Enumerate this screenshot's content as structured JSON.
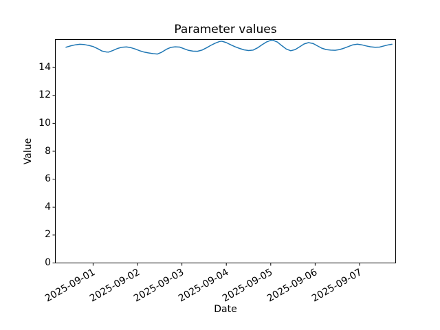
{
  "figure": {
    "background": "#ffffff"
  },
  "chart_data": {
    "type": "line",
    "title": "Parameter values",
    "xlabel": "Date",
    "ylabel": "Value",
    "grid": false,
    "legend": null,
    "x_axis": {
      "unit": "days_from_2025-09-01",
      "lim": [
        -0.85,
        6.813
      ],
      "tick_rotation_deg": 30,
      "ticks": [
        {
          "t": 0,
          "label": "2025-09-01"
        },
        {
          "t": 1,
          "label": "2025-09-02"
        },
        {
          "t": 2,
          "label": "2025-09-03"
        },
        {
          "t": 3,
          "label": "2025-09-04"
        },
        {
          "t": 4,
          "label": "2025-09-05"
        },
        {
          "t": 5,
          "label": "2025-09-06"
        },
        {
          "t": 6,
          "label": "2025-09-07"
        }
      ]
    },
    "y_axis": {
      "lim": [
        0,
        16
      ],
      "ticks": [
        0,
        2,
        4,
        6,
        8,
        10,
        12,
        14
      ]
    },
    "series": [
      {
        "name": "Parameter values",
        "color": "#1f77b4",
        "line_width": 1.5,
        "points": [
          [
            -0.61,
            15.45
          ],
          [
            -0.5,
            15.55
          ],
          [
            -0.4,
            15.62
          ],
          [
            -0.3,
            15.66
          ],
          [
            -0.2,
            15.64
          ],
          [
            -0.1,
            15.58
          ],
          [
            0.0,
            15.5
          ],
          [
            0.1,
            15.35
          ],
          [
            0.2,
            15.18
          ],
          [
            0.3,
            15.11
          ],
          [
            0.35,
            15.1
          ],
          [
            0.45,
            15.22
          ],
          [
            0.55,
            15.36
          ],
          [
            0.65,
            15.45
          ],
          [
            0.75,
            15.47
          ],
          [
            0.85,
            15.42
          ],
          [
            0.95,
            15.32
          ],
          [
            1.05,
            15.2
          ],
          [
            1.15,
            15.1
          ],
          [
            1.25,
            15.04
          ],
          [
            1.35,
            14.99
          ],
          [
            1.45,
            14.96
          ],
          [
            1.55,
            15.1
          ],
          [
            1.65,
            15.3
          ],
          [
            1.75,
            15.44
          ],
          [
            1.85,
            15.48
          ],
          [
            1.95,
            15.46
          ],
          [
            2.05,
            15.34
          ],
          [
            2.15,
            15.22
          ],
          [
            2.25,
            15.17
          ],
          [
            2.35,
            15.16
          ],
          [
            2.45,
            15.24
          ],
          [
            2.55,
            15.4
          ],
          [
            2.65,
            15.58
          ],
          [
            2.75,
            15.74
          ],
          [
            2.85,
            15.86
          ],
          [
            2.9,
            15.88
          ],
          [
            3.0,
            15.78
          ],
          [
            3.1,
            15.62
          ],
          [
            3.2,
            15.48
          ],
          [
            3.3,
            15.36
          ],
          [
            3.4,
            15.26
          ],
          [
            3.5,
            15.21
          ],
          [
            3.6,
            15.24
          ],
          [
            3.7,
            15.4
          ],
          [
            3.8,
            15.62
          ],
          [
            3.9,
            15.82
          ],
          [
            4.0,
            15.94
          ],
          [
            4.05,
            15.95
          ],
          [
            4.15,
            15.82
          ],
          [
            4.25,
            15.56
          ],
          [
            4.35,
            15.32
          ],
          [
            4.45,
            15.2
          ],
          [
            4.55,
            15.28
          ],
          [
            4.65,
            15.48
          ],
          [
            4.75,
            15.68
          ],
          [
            4.85,
            15.78
          ],
          [
            4.95,
            15.72
          ],
          [
            5.05,
            15.55
          ],
          [
            5.15,
            15.38
          ],
          [
            5.25,
            15.28
          ],
          [
            5.35,
            15.24
          ],
          [
            5.45,
            15.23
          ],
          [
            5.55,
            15.28
          ],
          [
            5.65,
            15.38
          ],
          [
            5.75,
            15.5
          ],
          [
            5.85,
            15.62
          ],
          [
            5.95,
            15.67
          ],
          [
            6.05,
            15.62
          ],
          [
            6.15,
            15.54
          ],
          [
            6.25,
            15.48
          ],
          [
            6.35,
            15.45
          ],
          [
            6.45,
            15.46
          ],
          [
            6.55,
            15.54
          ],
          [
            6.65,
            15.62
          ],
          [
            6.73,
            15.66
          ]
        ]
      }
    ]
  }
}
